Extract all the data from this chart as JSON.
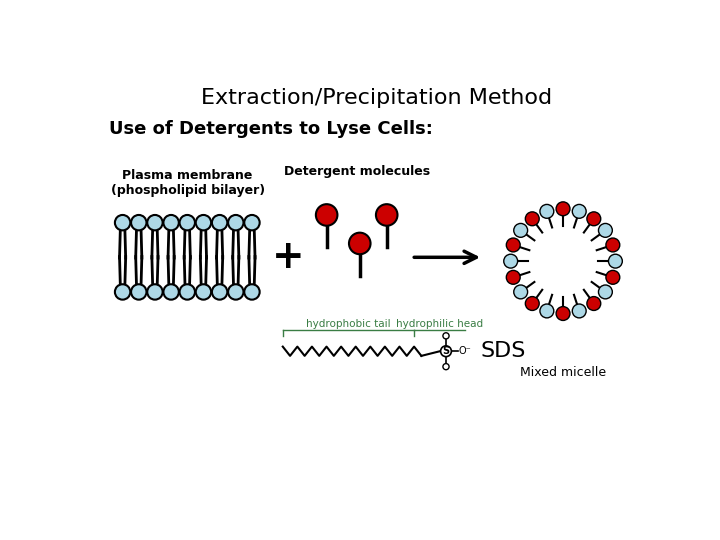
{
  "title": "Extraction/Precipitation Method",
  "subtitle": "Use of Detergents to Lyse Cells:",
  "plasma_label": "Plasma membrane\n(phospholipid bilayer)",
  "detergent_label": "Detergent molecules",
  "mixed_micelle_label": "Mixed micelle",
  "sds_label": "SDS",
  "hydrophobic_label": "hydrophobic tail",
  "hydrophilic_label": "hydrophilic head",
  "bg_color": "#ffffff",
  "head_color_light": "#add8e6",
  "head_color_dark": "#000000",
  "det_head_color": "#cc0000",
  "det_head_dark": "#000000",
  "micelle_head_red": "#cc0000",
  "micelle_head_blue": "#add8e6",
  "arrow_color": "#000000",
  "text_color": "#000000",
  "green_text": "#3a7d44",
  "plus_size": 28,
  "title_fontsize": 16,
  "subtitle_fontsize": 13,
  "label_fontsize": 10,
  "sds_fontsize": 16
}
